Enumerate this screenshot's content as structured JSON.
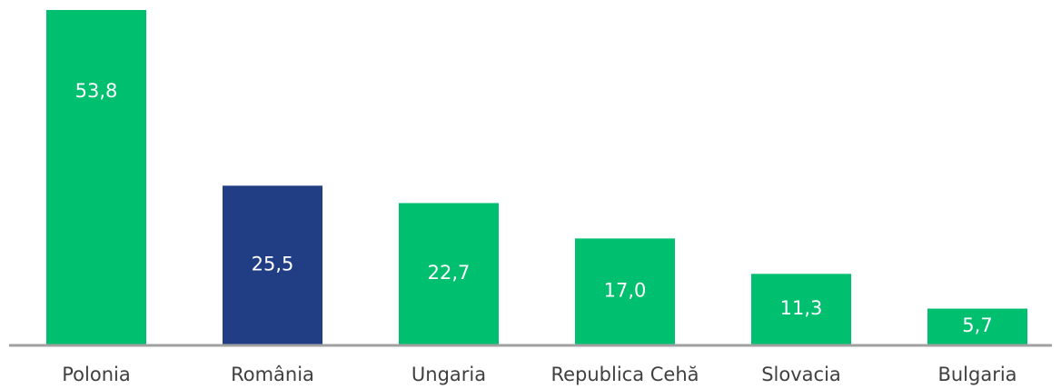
{
  "chart_data": {
    "type": "bar",
    "categories": [
      "Polonia",
      "România",
      "Ungaria",
      "Republica Cehă",
      "Slovacia",
      "Bulgaria"
    ],
    "values": [
      53.8,
      25.5,
      22.7,
      17.0,
      11.3,
      5.7
    ],
    "value_labels": [
      "53,8",
      "25,5",
      "22,7",
      "17,0",
      "11,3",
      "5,7"
    ],
    "colors": [
      "#00bf6f",
      "#213e85",
      "#00bf6f",
      "#00bf6f",
      "#00bf6f",
      "#00bf6f"
    ]
  }
}
